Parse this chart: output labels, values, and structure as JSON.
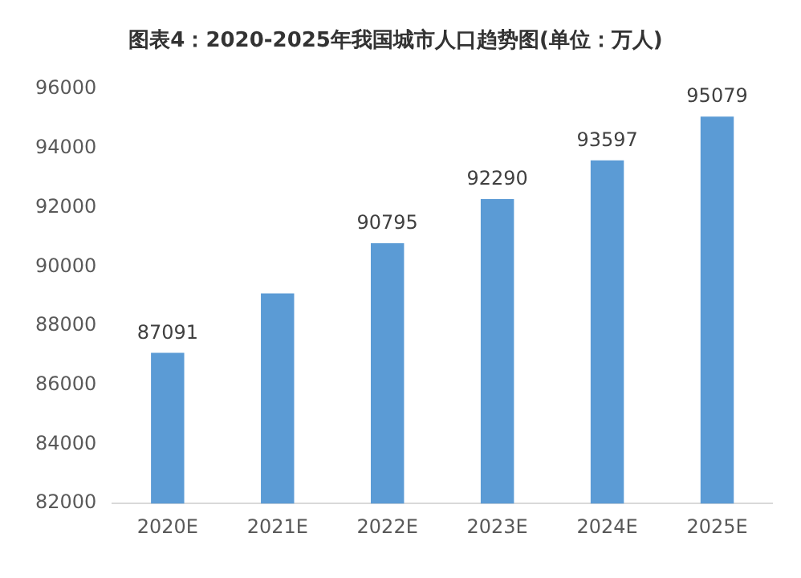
{
  "chart_data": {
    "type": "bar",
    "title": "图表4：2020-2025年我国城市人口趋势图(单位：万人)",
    "categories": [
      "2020E",
      "2021E",
      "2022E",
      "2023E",
      "2024E",
      "2025E"
    ],
    "values": [
      87091,
      89100,
      90795,
      92290,
      93597,
      95079
    ],
    "value_labels": [
      "87091",
      null,
      "90795",
      "92290",
      "93597",
      "95079"
    ],
    "color": "#5b9bd5",
    "ylim": [
      82000,
      96000
    ],
    "yticks": [
      82000,
      84000,
      86000,
      88000,
      90000,
      92000,
      94000,
      96000
    ],
    "grid": false
  }
}
